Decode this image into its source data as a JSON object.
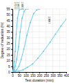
{
  "chart_data": {
    "type": "line",
    "xlabel": "Test duration (min)",
    "ylabel": "Degree of reduction (%)",
    "xlim": [
      0,
      400
    ],
    "ylim": [
      0,
      55
    ],
    "xticks": [
      0,
      50,
      100,
      150,
      200,
      250,
      300,
      350,
      400
    ],
    "yticks": [
      0,
      5,
      10,
      15,
      20,
      25,
      30,
      35,
      40,
      45,
      50,
      55
    ],
    "grid": true,
    "series": [
      {
        "x": [
          0,
          2,
          4,
          7,
          10,
          15,
          20,
          28,
          38,
          50,
          62,
          72,
          80
        ],
        "values": [
          0,
          0.3,
          0.8,
          2,
          4,
          9,
          18,
          33,
          47,
          54,
          55,
          55,
          55
        ],
        "color": "#66ccee",
        "marker": "square"
      },
      {
        "x": [
          0,
          5,
          10,
          15,
          22,
          32,
          45,
          58,
          72,
          88,
          100,
          115
        ],
        "values": [
          0,
          0.3,
          0.8,
          2,
          5,
          11,
          22,
          35,
          47,
          53,
          55,
          55
        ],
        "color": "#66ccee",
        "marker": "square"
      },
      {
        "x": [
          0,
          10,
          20,
          32,
          48,
          65,
          85,
          108,
          132,
          158,
          180,
          200
        ],
        "values": [
          0,
          0.3,
          0.8,
          2,
          5,
          11,
          20,
          32,
          43,
          51,
          54,
          55
        ],
        "color": "#66ccee",
        "marker": "square"
      },
      {
        "x": [
          0,
          20,
          50,
          80,
          110,
          150,
          190,
          230,
          280,
          320,
          360,
          400
        ],
        "values": [
          0,
          0.3,
          0.8,
          2,
          4,
          7,
          12,
          18,
          26,
          33,
          40,
          46
        ],
        "color": "#66ccee",
        "marker": "square"
      }
    ],
    "annotations": [
      {
        "text": "1 175 C",
        "x": 18,
        "y": 54.5
      },
      {
        "text": "1 150 C",
        "x": 38,
        "y": 54.5
      },
      {
        "text": "1 100 C",
        "x": 68,
        "y": 54.5
      },
      {
        "text": "1 000 C",
        "x": 270,
        "y": 42
      }
    ]
  }
}
